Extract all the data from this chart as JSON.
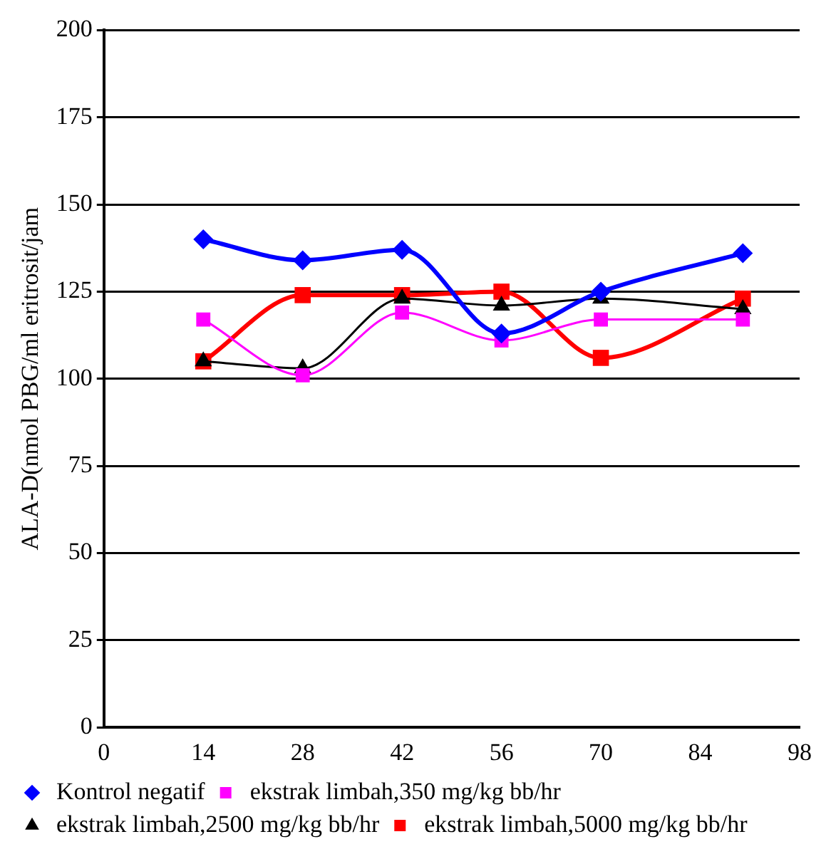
{
  "chart_data": {
    "type": "line",
    "ylabel": "ALA-D(nmol PBG/ml eritrosit/jam",
    "x": [
      14,
      28,
      42,
      56,
      70,
      90
    ],
    "xlim": [
      0,
      98
    ],
    "xticks": [
      0,
      14,
      28,
      42,
      56,
      70,
      84,
      98
    ],
    "ylim": [
      0,
      200
    ],
    "yticks": [
      0,
      25,
      50,
      75,
      100,
      125,
      150,
      175,
      200
    ],
    "grid": "y",
    "legend": "bottom",
    "series": [
      {
        "name": "Kontrol negatif",
        "color": "#0000ff",
        "marker": "diamond",
        "values": [
          140,
          134,
          137,
          113,
          125,
          136
        ]
      },
      {
        "name": "ekstrak limbah,350 mg/kg bb/hr",
        "color": "#ff00ff",
        "marker": "square",
        "values": [
          117,
          101,
          119,
          111,
          117,
          117
        ]
      },
      {
        "name": "ekstrak limbah,2500 mg/kg bb/hr",
        "color": "#000000",
        "marker": "triangle",
        "values": [
          105,
          103,
          123,
          121,
          123,
          120
        ]
      },
      {
        "name": "ekstrak limbah,5000 mg/kg bb/hr",
        "color": "#ff0000",
        "marker": "square",
        "values": [
          105,
          124,
          124,
          125,
          106,
          123
        ]
      }
    ]
  }
}
